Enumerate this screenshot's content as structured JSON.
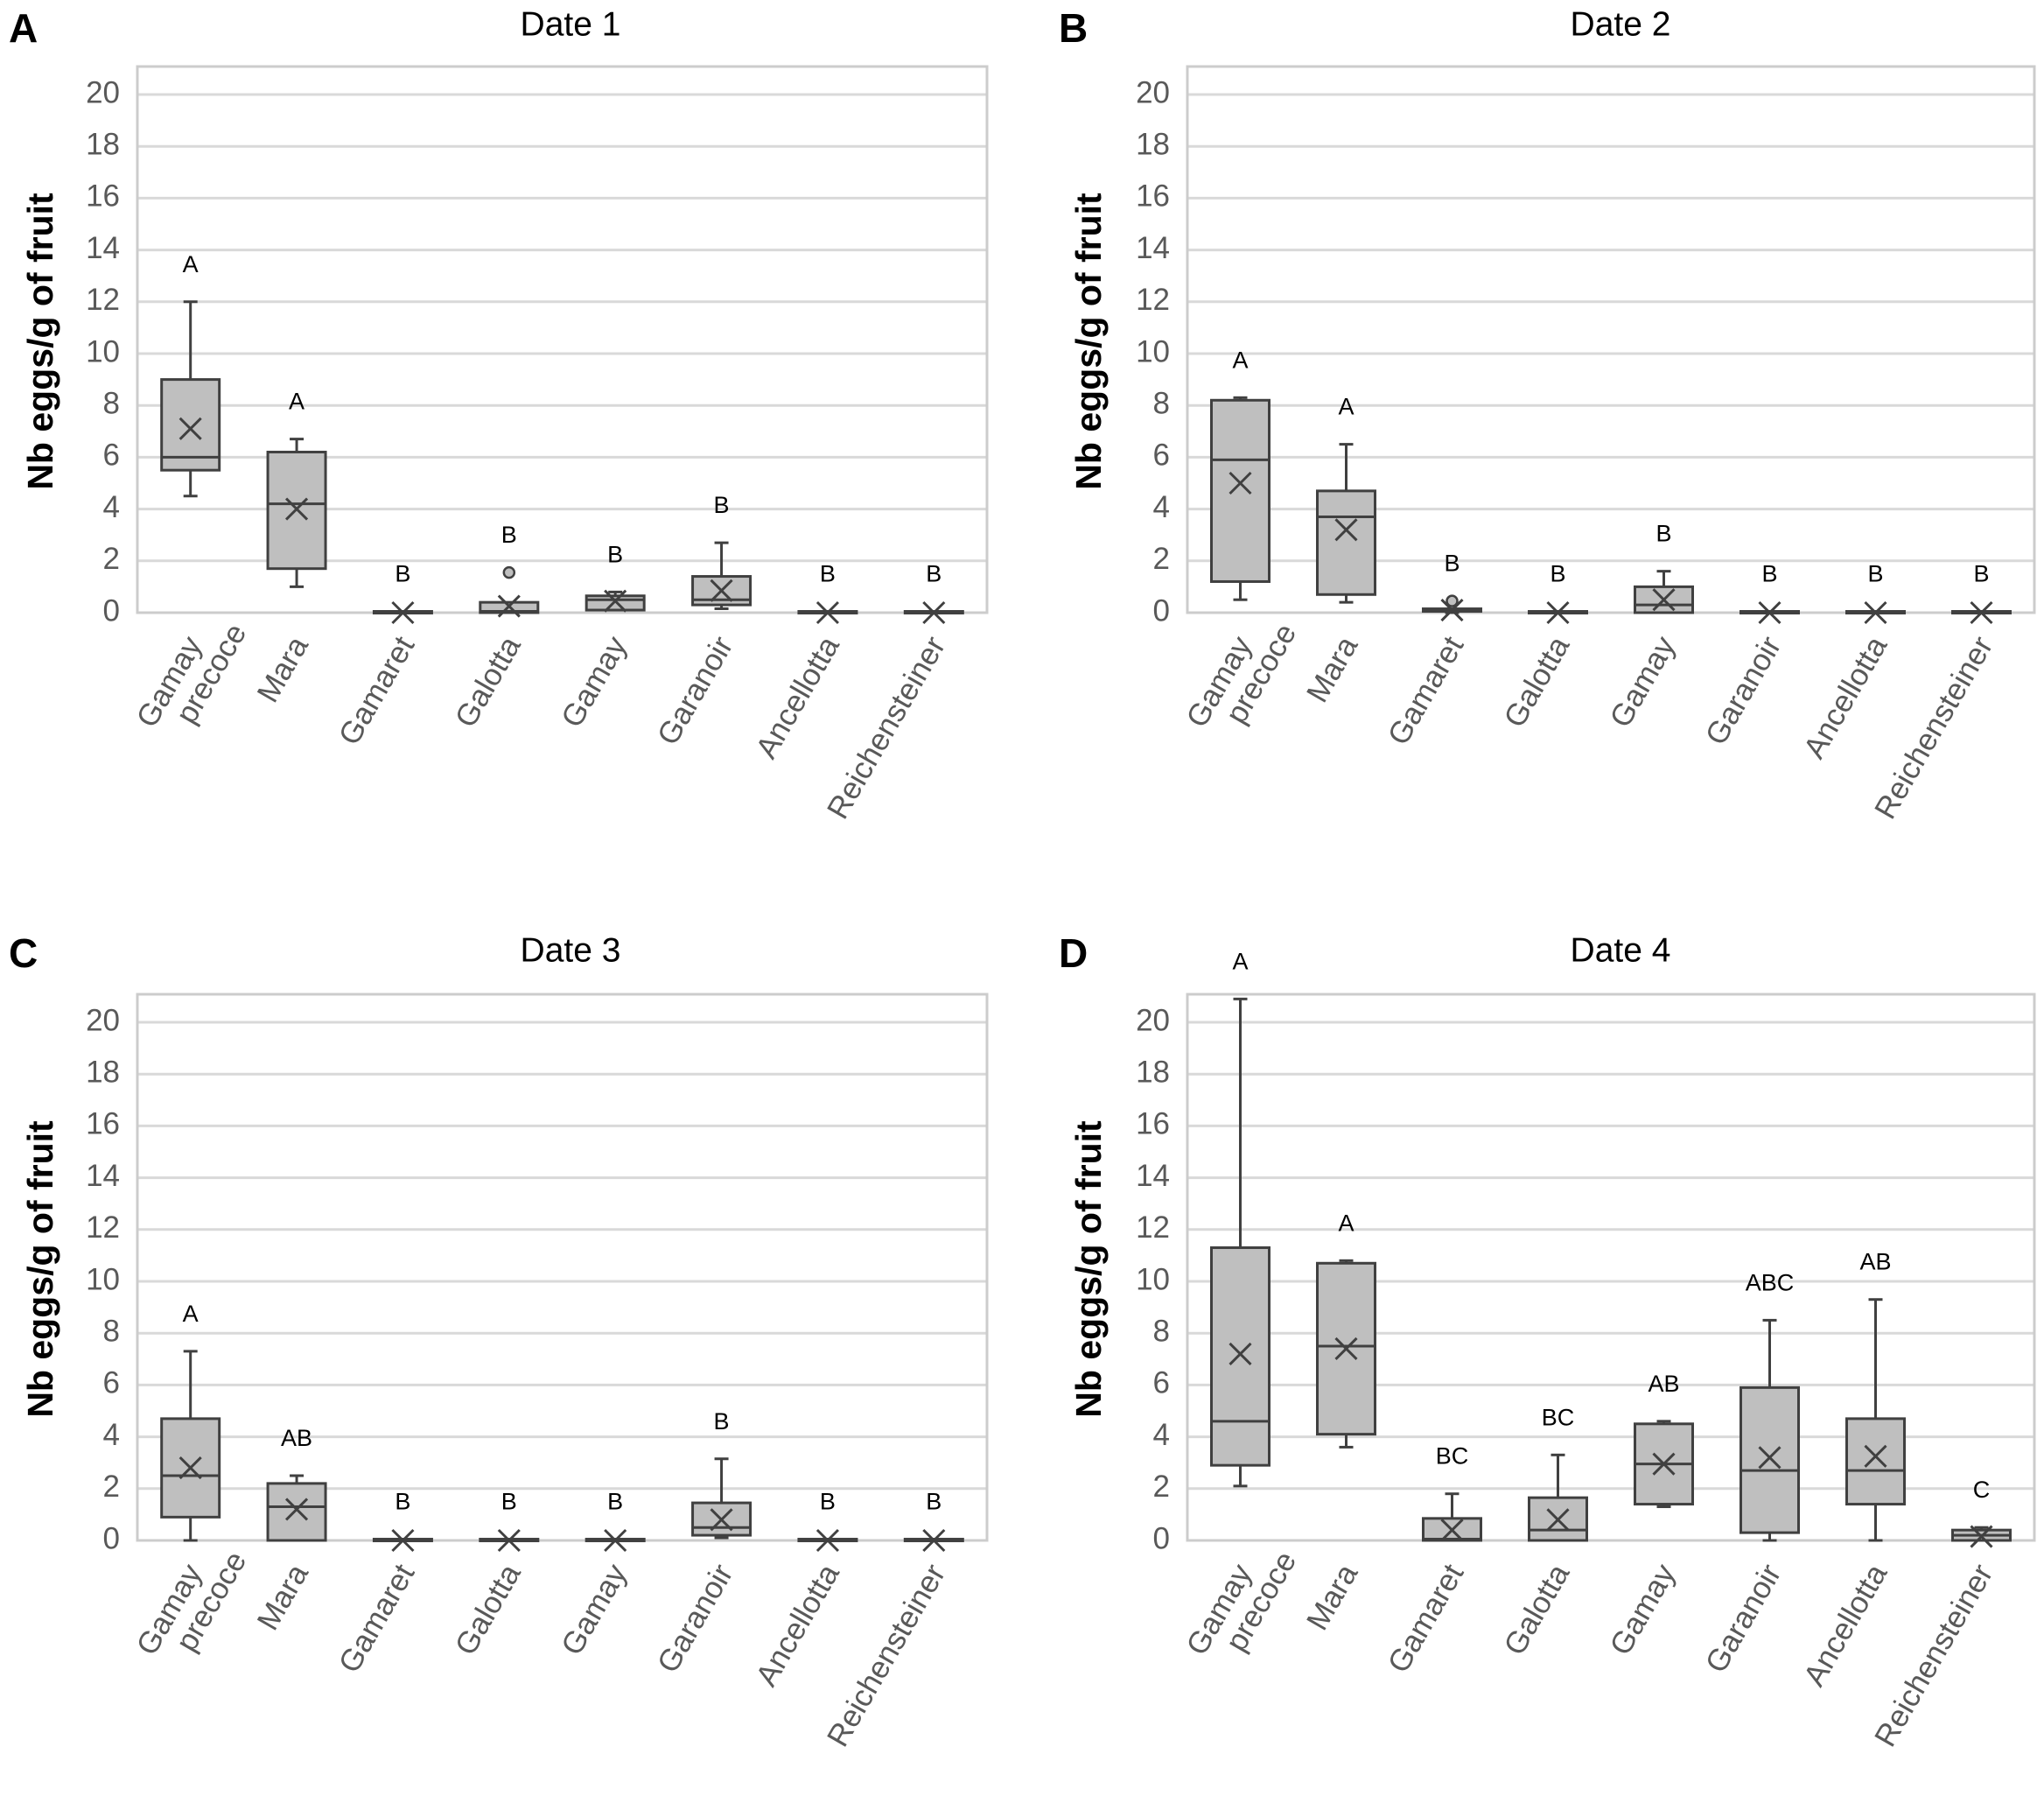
{
  "chart_data": [
    {
      "type": "box",
      "panel": "A",
      "title": "Date 1",
      "ylabel": "Nb eggs/g of fruit",
      "xlabel": "",
      "ylim": [
        0,
        21
      ],
      "yticks": [
        0,
        2,
        4,
        6,
        8,
        10,
        12,
        14,
        16,
        18,
        20
      ],
      "grid": true,
      "categories": [
        [
          "Gamay",
          "precoce"
        ],
        [
          "Mara"
        ],
        [
          "Gamaret"
        ],
        [
          "Galotta"
        ],
        [
          "Gamay"
        ],
        [
          "Garanoir"
        ],
        [
          "Ancellotta"
        ],
        [
          "Reichensteiner"
        ]
      ],
      "boxes": [
        {
          "min": 4.5,
          "q1": 5.5,
          "median": 6.0,
          "q3": 9.0,
          "max": 12.0,
          "mean": 7.1,
          "outliers": [],
          "letter": "A"
        },
        {
          "min": 1.0,
          "q1": 1.7,
          "median": 4.2,
          "q3": 6.2,
          "max": 6.7,
          "mean": 4.0,
          "outliers": [],
          "letter": "A"
        },
        {
          "min": 0,
          "q1": 0,
          "median": 0,
          "q3": 0.05,
          "max": 0.05,
          "mean": 0,
          "outliers": [],
          "letter": "B"
        },
        {
          "min": 0,
          "q1": 0,
          "median": 0.05,
          "q3": 0.4,
          "max": 0.4,
          "mean": 0.25,
          "outliers": [
            1.55
          ],
          "letter": "B"
        },
        {
          "min": 0.1,
          "q1": 0.1,
          "median": 0.5,
          "q3": 0.65,
          "max": 0.8,
          "mean": 0.45,
          "outliers": [],
          "letter": "B"
        },
        {
          "min": 0.15,
          "q1": 0.3,
          "median": 0.5,
          "q3": 1.4,
          "max": 2.7,
          "mean": 0.85,
          "outliers": [],
          "letter": "B"
        },
        {
          "min": 0,
          "q1": 0,
          "median": 0,
          "q3": 0.05,
          "max": 0.05,
          "mean": 0,
          "outliers": [],
          "letter": "B"
        },
        {
          "min": 0,
          "q1": 0,
          "median": 0,
          "q3": 0.05,
          "max": 0.05,
          "mean": 0,
          "outliers": [],
          "letter": "B"
        }
      ]
    },
    {
      "type": "box",
      "panel": "B",
      "title": "Date 2",
      "ylabel": "Nb eggs/g of fruit",
      "xlabel": "",
      "ylim": [
        0,
        21
      ],
      "yticks": [
        0,
        2,
        4,
        6,
        8,
        10,
        12,
        14,
        16,
        18,
        20
      ],
      "grid": true,
      "categories": [
        [
          "Gamay",
          "precoce"
        ],
        [
          "Mara"
        ],
        [
          "Gamaret"
        ],
        [
          "Galotta"
        ],
        [
          "Gamay"
        ],
        [
          "Garanoir"
        ],
        [
          "Ancellotta"
        ],
        [
          "Reichensteiner"
        ]
      ],
      "boxes": [
        {
          "min": 0.5,
          "q1": 1.2,
          "median": 5.9,
          "q3": 8.2,
          "max": 8.3,
          "mean": 5.0,
          "outliers": [],
          "letter": "A"
        },
        {
          "min": 0.4,
          "q1": 0.7,
          "median": 3.7,
          "q3": 4.7,
          "max": 6.5,
          "mean": 3.2,
          "outliers": [],
          "letter": "A"
        },
        {
          "min": 0,
          "q1": 0.05,
          "median": 0.1,
          "q3": 0.15,
          "max": 0.15,
          "mean": 0.1,
          "outliers": [
            0.45
          ],
          "letter": "B"
        },
        {
          "min": 0,
          "q1": 0,
          "median": 0,
          "q3": 0.05,
          "max": 0.05,
          "mean": 0,
          "outliers": [],
          "letter": "B"
        },
        {
          "min": 0,
          "q1": 0,
          "median": 0.3,
          "q3": 1.0,
          "max": 1.6,
          "mean": 0.5,
          "outliers": [],
          "letter": "B"
        },
        {
          "min": 0,
          "q1": 0,
          "median": 0,
          "q3": 0.05,
          "max": 0.05,
          "mean": 0,
          "outliers": [],
          "letter": "B"
        },
        {
          "min": 0,
          "q1": 0,
          "median": 0,
          "q3": 0.05,
          "max": 0.05,
          "mean": 0,
          "outliers": [],
          "letter": "B"
        },
        {
          "min": 0,
          "q1": 0,
          "median": 0,
          "q3": 0.05,
          "max": 0.05,
          "mean": 0,
          "outliers": [],
          "letter": "B"
        }
      ]
    },
    {
      "type": "box",
      "panel": "C",
      "title": "Date 3",
      "ylabel": "Nb eggs/g of fruit",
      "xlabel": "",
      "ylim": [
        0,
        21
      ],
      "yticks": [
        0,
        2,
        4,
        6,
        8,
        10,
        12,
        14,
        16,
        18,
        20
      ],
      "grid": true,
      "categories": [
        [
          "Gamay",
          "precoce"
        ],
        [
          "Mara"
        ],
        [
          "Gamaret"
        ],
        [
          "Galotta"
        ],
        [
          "Gamay"
        ],
        [
          "Garanoir"
        ],
        [
          "Ancellotta"
        ],
        [
          "Reichensteiner"
        ]
      ],
      "boxes": [
        {
          "min": 0,
          "q1": 0.9,
          "median": 2.5,
          "q3": 4.7,
          "max": 7.3,
          "mean": 2.8,
          "outliers": [],
          "letter": "A"
        },
        {
          "min": 0,
          "q1": 0,
          "median": 1.3,
          "q3": 2.2,
          "max": 2.5,
          "mean": 1.2,
          "outliers": [],
          "letter": "AB"
        },
        {
          "min": 0,
          "q1": 0,
          "median": 0,
          "q3": 0.05,
          "max": 0.05,
          "mean": 0,
          "outliers": [],
          "letter": "B"
        },
        {
          "min": 0,
          "q1": 0,
          "median": 0,
          "q3": 0.05,
          "max": 0.05,
          "mean": 0,
          "outliers": [],
          "letter": "B"
        },
        {
          "min": 0,
          "q1": 0,
          "median": 0,
          "q3": 0.05,
          "max": 0.05,
          "mean": 0,
          "outliers": [],
          "letter": "B"
        },
        {
          "min": 0.1,
          "q1": 0.2,
          "median": 0.5,
          "q3": 1.45,
          "max": 3.15,
          "mean": 0.8,
          "outliers": [],
          "letter": "B"
        },
        {
          "min": 0,
          "q1": 0,
          "median": 0,
          "q3": 0.05,
          "max": 0.05,
          "mean": 0,
          "outliers": [],
          "letter": "B"
        },
        {
          "min": 0,
          "q1": 0,
          "median": 0,
          "q3": 0.05,
          "max": 0.05,
          "mean": 0,
          "outliers": [],
          "letter": "B"
        }
      ]
    },
    {
      "type": "box",
      "panel": "D",
      "title": "Date 4",
      "ylabel": "Nb eggs/g of fruit",
      "xlabel": "",
      "ylim": [
        0,
        21
      ],
      "yticks": [
        0,
        2,
        4,
        6,
        8,
        10,
        12,
        14,
        16,
        18,
        20
      ],
      "grid": true,
      "categories": [
        [
          "Gamay",
          "precoce"
        ],
        [
          "Mara"
        ],
        [
          "Gamaret"
        ],
        [
          "Galotta"
        ],
        [
          "Gamay"
        ],
        [
          "Garanoir"
        ],
        [
          "Ancellotta"
        ],
        [
          "Reichensteiner"
        ]
      ],
      "boxes": [
        {
          "min": 2.1,
          "q1": 2.9,
          "median": 4.6,
          "q3": 11.3,
          "max": 20.9,
          "mean": 7.2,
          "outliers": [],
          "letter": "A"
        },
        {
          "min": 3.6,
          "q1": 4.1,
          "median": 7.5,
          "q3": 10.7,
          "max": 10.8,
          "mean": 7.4,
          "outliers": [],
          "letter": "A"
        },
        {
          "min": 0,
          "q1": 0,
          "median": 0.05,
          "q3": 0.85,
          "max": 1.8,
          "mean": 0.4,
          "outliers": [],
          "letter": "BC"
        },
        {
          "min": 0,
          "q1": 0,
          "median": 0.4,
          "q3": 1.65,
          "max": 3.3,
          "mean": 0.8,
          "outliers": [],
          "letter": "BC"
        },
        {
          "min": 1.3,
          "q1": 1.4,
          "median": 2.95,
          "q3": 4.5,
          "max": 4.6,
          "mean": 2.95,
          "outliers": [],
          "letter": "AB"
        },
        {
          "min": 0,
          "q1": 0.3,
          "median": 2.7,
          "q3": 5.9,
          "max": 8.5,
          "mean": 3.2,
          "outliers": [],
          "letter": "ABC"
        },
        {
          "min": 0,
          "q1": 1.4,
          "median": 2.7,
          "q3": 4.7,
          "max": 9.3,
          "mean": 3.25,
          "outliers": [],
          "letter": "AB"
        },
        {
          "min": 0,
          "q1": 0,
          "median": 0.2,
          "q3": 0.4,
          "max": 0.5,
          "mean": 0.15,
          "outliers": [],
          "letter": "C"
        }
      ]
    }
  ],
  "colors": {
    "box_fill": "#bfbfbf",
    "box_stroke": "#404040",
    "grid": "#d9d9d9",
    "frame": "#cccccc",
    "tick_text": "#595959"
  }
}
